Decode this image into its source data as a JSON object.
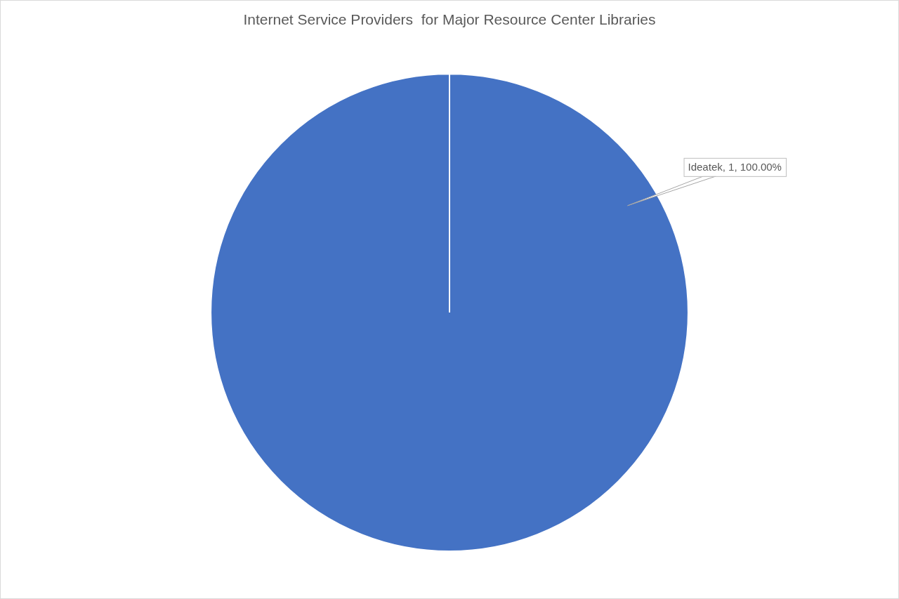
{
  "chart_data": {
    "type": "pie",
    "title": "Internet Service Providers  for Major Resource Center Libraries",
    "categories": [
      "Ideatek"
    ],
    "values": [
      1
    ],
    "value_labels": [
      "Ideatek, 1, 100.00%"
    ],
    "colors": [
      "#4472c4"
    ],
    "data_labels": true
  }
}
